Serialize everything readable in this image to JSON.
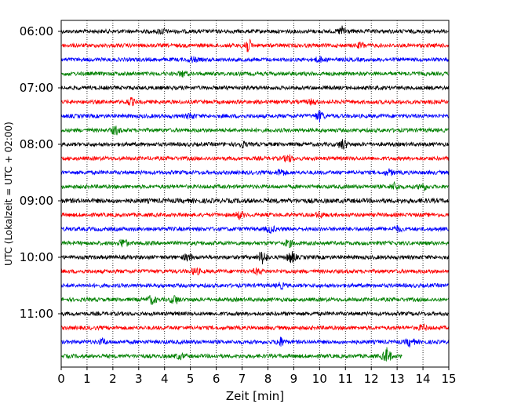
{
  "chart_data": {
    "type": "line",
    "title": "",
    "xlabel": "Zeit  [min]",
    "ylabel": "UTC (Lokalzeit = UTC + 02:00)",
    "xlim": [
      0,
      15
    ],
    "x_ticks": [
      0,
      1,
      2,
      3,
      4,
      5,
      6,
      7,
      8,
      9,
      10,
      11,
      12,
      13,
      14,
      15
    ],
    "y_tick_labels": [
      "06:00",
      "07:00",
      "08:00",
      "09:00",
      "10:00",
      "11:00"
    ],
    "grid": "vertical dotted at each minute",
    "legend": "none",
    "color_cycle": [
      "#000000",
      "#ff0000",
      "#0000ff",
      "#008000"
    ],
    "traces": [
      {
        "start": "06:00",
        "end_min": 15,
        "color": "#000000",
        "amp": 2.5,
        "events": [
          {
            "x": 3.9,
            "a": 3
          },
          {
            "x": 10.9,
            "a": 6
          }
        ]
      },
      {
        "start": "06:15",
        "end_min": 15,
        "color": "#ff0000",
        "amp": 2.5,
        "events": [
          {
            "x": 7.2,
            "a": 9
          },
          {
            "x": 11.6,
            "a": 3
          }
        ]
      },
      {
        "start": "06:30",
        "end_min": 15,
        "color": "#0000ff",
        "amp": 2.5,
        "events": [
          {
            "x": 5.1,
            "a": 3
          },
          {
            "x": 10.0,
            "a": 3
          }
        ]
      },
      {
        "start": "06:45",
        "end_min": 15,
        "color": "#008000",
        "amp": 2.5,
        "events": [
          {
            "x": 4.7,
            "a": 3
          }
        ]
      },
      {
        "start": "07:00",
        "end_min": 15,
        "color": "#000000",
        "amp": 2.5,
        "events": []
      },
      {
        "start": "07:15",
        "end_min": 15,
        "color": "#ff0000",
        "amp": 2.5,
        "events": [
          {
            "x": 2.7,
            "a": 4
          },
          {
            "x": 9.7,
            "a": 3
          }
        ]
      },
      {
        "start": "07:30",
        "end_min": 15,
        "color": "#0000ff",
        "amp": 2.5,
        "events": [
          {
            "x": 10.0,
            "a": 6
          },
          {
            "x": 5.0,
            "a": 3
          }
        ]
      },
      {
        "start": "07:45",
        "end_min": 15,
        "color": "#008000",
        "amp": 2.5,
        "events": [
          {
            "x": 2.1,
            "a": 5
          }
        ]
      },
      {
        "start": "08:00",
        "end_min": 15,
        "color": "#000000",
        "amp": 2.5,
        "events": [
          {
            "x": 10.9,
            "a": 6
          },
          {
            "x": 7.0,
            "a": 3
          }
        ]
      },
      {
        "start": "08:15",
        "end_min": 15,
        "color": "#ff0000",
        "amp": 2.5,
        "events": [
          {
            "x": 8.8,
            "a": 4
          }
        ]
      },
      {
        "start": "08:30",
        "end_min": 15,
        "color": "#0000ff",
        "amp": 2.5,
        "events": [
          {
            "x": 8.5,
            "a": 4
          },
          {
            "x": 12.7,
            "a": 3
          }
        ]
      },
      {
        "start": "08:45",
        "end_min": 15,
        "color": "#008000",
        "amp": 2.5,
        "events": [
          {
            "x": 12.9,
            "a": 4
          },
          {
            "x": 14.0,
            "a": 4
          }
        ]
      },
      {
        "start": "09:00",
        "end_min": 15,
        "color": "#000000",
        "amp": 3,
        "events": []
      },
      {
        "start": "09:15",
        "end_min": 15,
        "color": "#ff0000",
        "amp": 2.5,
        "events": [
          {
            "x": 6.9,
            "a": 4
          },
          {
            "x": 10.0,
            "a": 3
          }
        ]
      },
      {
        "start": "09:30",
        "end_min": 15,
        "color": "#0000ff",
        "amp": 2.5,
        "events": [
          {
            "x": 8.1,
            "a": 4
          },
          {
            "x": 13.0,
            "a": 3
          }
        ]
      },
      {
        "start": "09:45",
        "end_min": 15,
        "color": "#008000",
        "amp": 2.5,
        "events": [
          {
            "x": 2.4,
            "a": 5
          },
          {
            "x": 8.8,
            "a": 4
          }
        ]
      },
      {
        "start": "10:00",
        "end_min": 15,
        "color": "#000000",
        "amp": 2.5,
        "events": [
          {
            "x": 7.8,
            "a": 8
          },
          {
            "x": 8.9,
            "a": 7
          },
          {
            "x": 4.9,
            "a": 4
          }
        ]
      },
      {
        "start": "10:15",
        "end_min": 15,
        "color": "#ff0000",
        "amp": 2.5,
        "events": [
          {
            "x": 5.2,
            "a": 4
          },
          {
            "x": 7.6,
            "a": 3
          }
        ]
      },
      {
        "start": "10:30",
        "end_min": 15,
        "color": "#0000ff",
        "amp": 2.5,
        "events": [
          {
            "x": 8.5,
            "a": 3
          }
        ]
      },
      {
        "start": "10:45",
        "end_min": 15,
        "color": "#008000",
        "amp": 2.5,
        "events": [
          {
            "x": 3.5,
            "a": 5
          },
          {
            "x": 4.4,
            "a": 5
          }
        ]
      },
      {
        "start": "11:00",
        "end_min": 15,
        "color": "#000000",
        "amp": 2.5,
        "events": []
      },
      {
        "start": "11:15",
        "end_min": 15,
        "color": "#ff0000",
        "amp": 2.5,
        "events": [
          {
            "x": 14.0,
            "a": 3
          }
        ]
      },
      {
        "start": "11:30",
        "end_min": 15,
        "color": "#0000ff",
        "amp": 2.5,
        "events": [
          {
            "x": 8.5,
            "a": 5
          },
          {
            "x": 13.5,
            "a": 5
          },
          {
            "x": 1.6,
            "a": 3
          }
        ]
      },
      {
        "start": "11:45",
        "end_min": 13.2,
        "color": "#008000",
        "amp": 2.5,
        "events": [
          {
            "x": 12.6,
            "a": 9
          },
          {
            "x": 4.6,
            "a": 3
          }
        ]
      }
    ]
  }
}
